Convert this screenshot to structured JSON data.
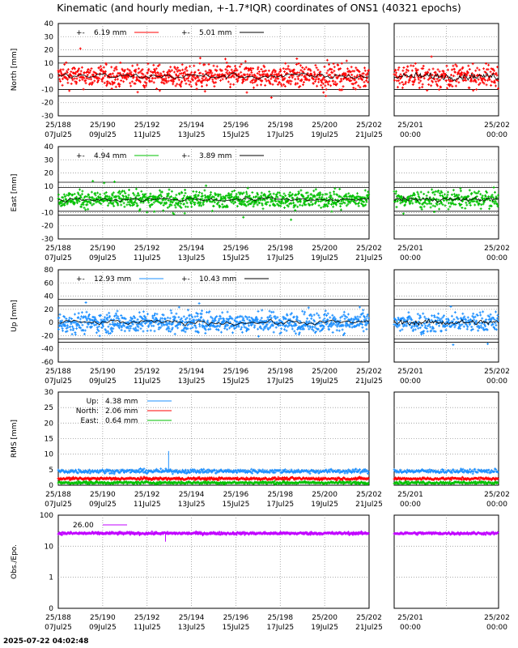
{
  "title": "Kinematic (and hourly median, +-1.7*IQR) coordinates of ONS1 (40321 epochs)",
  "timestamp": "2025-07-22 04:02:48",
  "colors": {
    "north": "#ff0000",
    "east": "#00c000",
    "up": "#1e90ff",
    "obs": "#c000ff",
    "median": "#000000"
  },
  "x_ticks_main": [
    {
      "doy": "25/188",
      "date": "07Jul25"
    },
    {
      "doy": "25/190",
      "date": "09Jul25"
    },
    {
      "doy": "25/192",
      "date": "11Jul25"
    },
    {
      "doy": "25/194",
      "date": "13Jul25"
    },
    {
      "doy": "25/196",
      "date": "15Jul25"
    },
    {
      "doy": "25/198",
      "date": "17Jul25"
    },
    {
      "doy": "25/200",
      "date": "19Jul25"
    },
    {
      "doy": "25/202",
      "date": "21Jul25"
    }
  ],
  "x_ticks_zoom": [
    {
      "doy": "25/201",
      "date": "00:00"
    },
    {
      "doy": "25/202",
      "date": "00:00"
    }
  ],
  "chart_data": [
    {
      "type": "scatter",
      "name": "north",
      "ylabel": "North [mm]",
      "ylim": [
        -30,
        40
      ],
      "yticks": [
        "40",
        "30",
        "20",
        "10",
        "0",
        "-10",
        "-20",
        "-30"
      ],
      "legend": [
        {
          "label": "+-",
          "value": "6.19 mm"
        },
        {
          "label": "+-",
          "value": "5.01 mm"
        }
      ],
      "hlines": [
        15,
        -15,
        10,
        -10
      ],
      "noise": 6,
      "median_noise": 3
    },
    {
      "type": "scatter",
      "name": "east",
      "ylabel": "East [mm]",
      "ylim": [
        -30,
        40
      ],
      "yticks": [
        "40",
        "30",
        "20",
        "10",
        "0",
        "-10",
        "-20",
        "-30"
      ],
      "legend": [
        {
          "label": "+-",
          "value": "4.94 mm"
        },
        {
          "label": "+-",
          "value": "3.89 mm"
        }
      ],
      "hlines": [
        13,
        -12,
        9,
        -9
      ],
      "noise": 4.5,
      "median_noise": 2
    },
    {
      "type": "scatter",
      "name": "up",
      "ylabel": "Up [mm]",
      "ylim": [
        -60,
        80
      ],
      "yticks": [
        "80",
        "60",
        "40",
        "20",
        "0",
        "-20",
        "-40",
        "-60"
      ],
      "legend": [
        {
          "label": "+-",
          "value": "12.93 mm"
        },
        {
          "label": "+-",
          "value": "10.43 mm"
        }
      ],
      "hlines": [
        35,
        -30,
        25,
        -25
      ],
      "noise": 11,
      "median_noise": 5
    },
    {
      "type": "line",
      "name": "rms",
      "ylabel": "RMS [mm]",
      "ylim": [
        0,
        30
      ],
      "yticks": [
        "30",
        "25",
        "20",
        "15",
        "10",
        "5",
        "0"
      ],
      "series": [
        {
          "name": "Up:",
          "value": "4.38 mm",
          "level": 4.5
        },
        {
          "name": "North:",
          "value": "2.06 mm",
          "level": 2.1
        },
        {
          "name": "East:",
          "value": "0.64 mm",
          "level": 0.8
        }
      ]
    },
    {
      "type": "scatter",
      "name": "obs",
      "ylabel": "Obs./Epo.",
      "scale": "log",
      "yticks": [
        "100",
        "10",
        "1",
        "0"
      ],
      "legend": [
        {
          "label": "",
          "value": "26.00"
        }
      ],
      "level": 26
    }
  ]
}
